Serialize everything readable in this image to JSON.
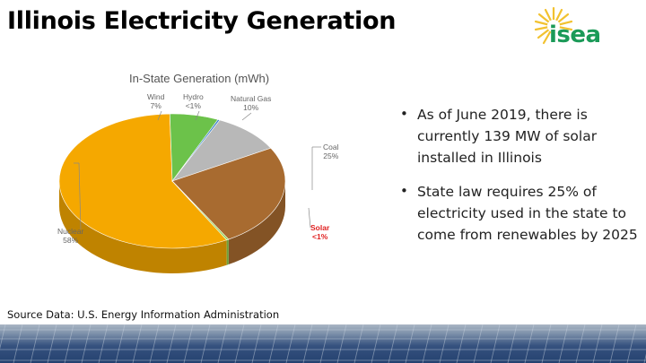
{
  "slide": {
    "title": "Illinois Electricity Generation",
    "source": "Source Data: U.S. Energy Information Administration"
  },
  "logo": {
    "text": "isea",
    "icon": "sun-icon",
    "color": "#1b9a58",
    "sun_color": "#f2c230"
  },
  "bullets": [
    "As of June 2019, there is currently 139 MW of solar installed in Illinois",
    "State law requires 25% of electricity used in the state to come from renewables by 2025"
  ],
  "chart_data": {
    "type": "pie",
    "title": "In-State Generation (mWh)",
    "slices": [
      {
        "name": "Nuclear",
        "label": "58%",
        "value": 58,
        "color": "#f5a800"
      },
      {
        "name": "Wind",
        "label": "7%",
        "value": 7,
        "color": "#6cc24a"
      },
      {
        "name": "Hydro",
        "label": "<1%",
        "value": 0.3,
        "color": "#3c82c8"
      },
      {
        "name": "Natural Gas",
        "label": "10%",
        "value": 10,
        "color": "#b8b8b8"
      },
      {
        "name": "Coal",
        "label": "25%",
        "value": 25,
        "color": "#a86b30"
      },
      {
        "name": "Solar",
        "label": "<1%",
        "value": 0.3,
        "color": "#8bd04c"
      }
    ],
    "style": "3d",
    "legend": "none"
  }
}
